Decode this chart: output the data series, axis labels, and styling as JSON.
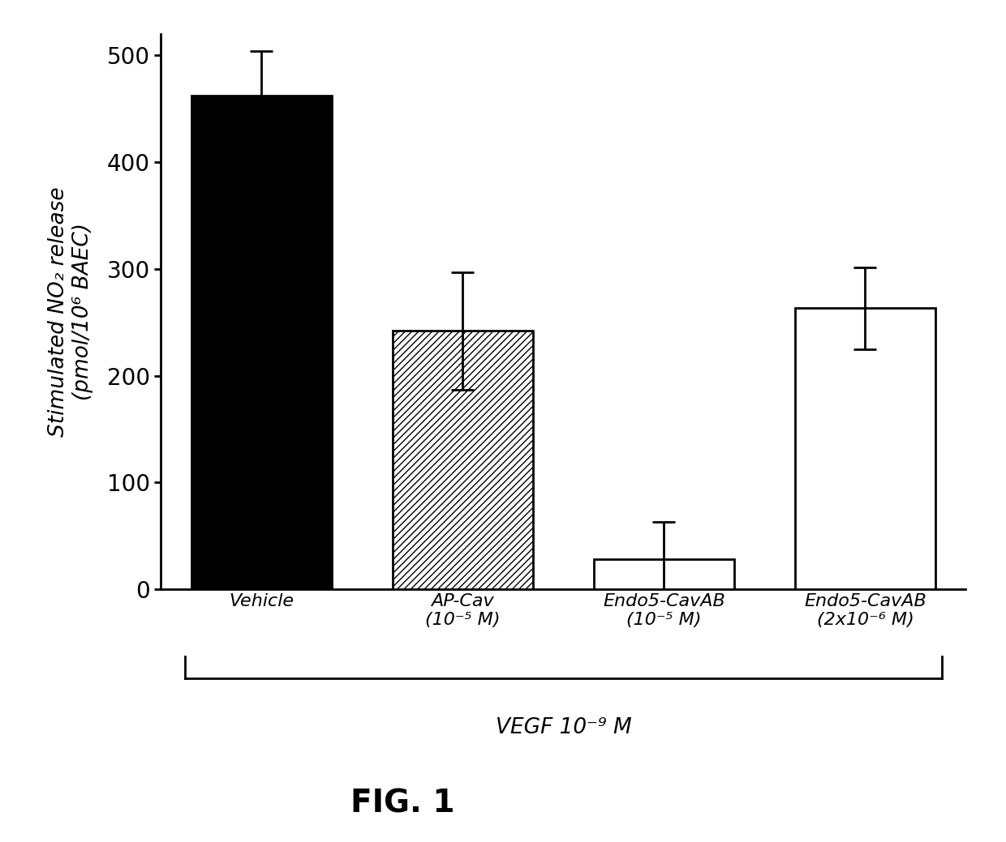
{
  "categories": [
    "Vehicle",
    "AP-Cav\n(10⁻⁵ M)",
    "Endo5-CavAB\n(10⁻⁵ M)",
    "Endo5-CavAB\n(2x10⁻⁶ M)"
  ],
  "values": [
    462,
    242,
    28,
    263
  ],
  "errors": [
    42,
    55,
    35,
    38
  ],
  "bar_styles": [
    "solid_black",
    "hatched",
    "white",
    "white"
  ],
  "ylabel_line1": "Stimulated NO₂ release",
  "ylabel_line2": "(pmol/10⁶ BAEC)",
  "xlabel_bottom": "VEGF 10⁻⁹ M",
  "ylim": [
    0,
    520
  ],
  "yticks": [
    0,
    100,
    200,
    300,
    400,
    500
  ],
  "fig_label": "FIG. 1",
  "background_color": "#ffffff",
  "bar_color_solid": "#000000",
  "bar_color_hatch": "#ffffff",
  "bar_color_white": "#ffffff",
  "hatch_pattern": "////",
  "edge_color": "#000000"
}
